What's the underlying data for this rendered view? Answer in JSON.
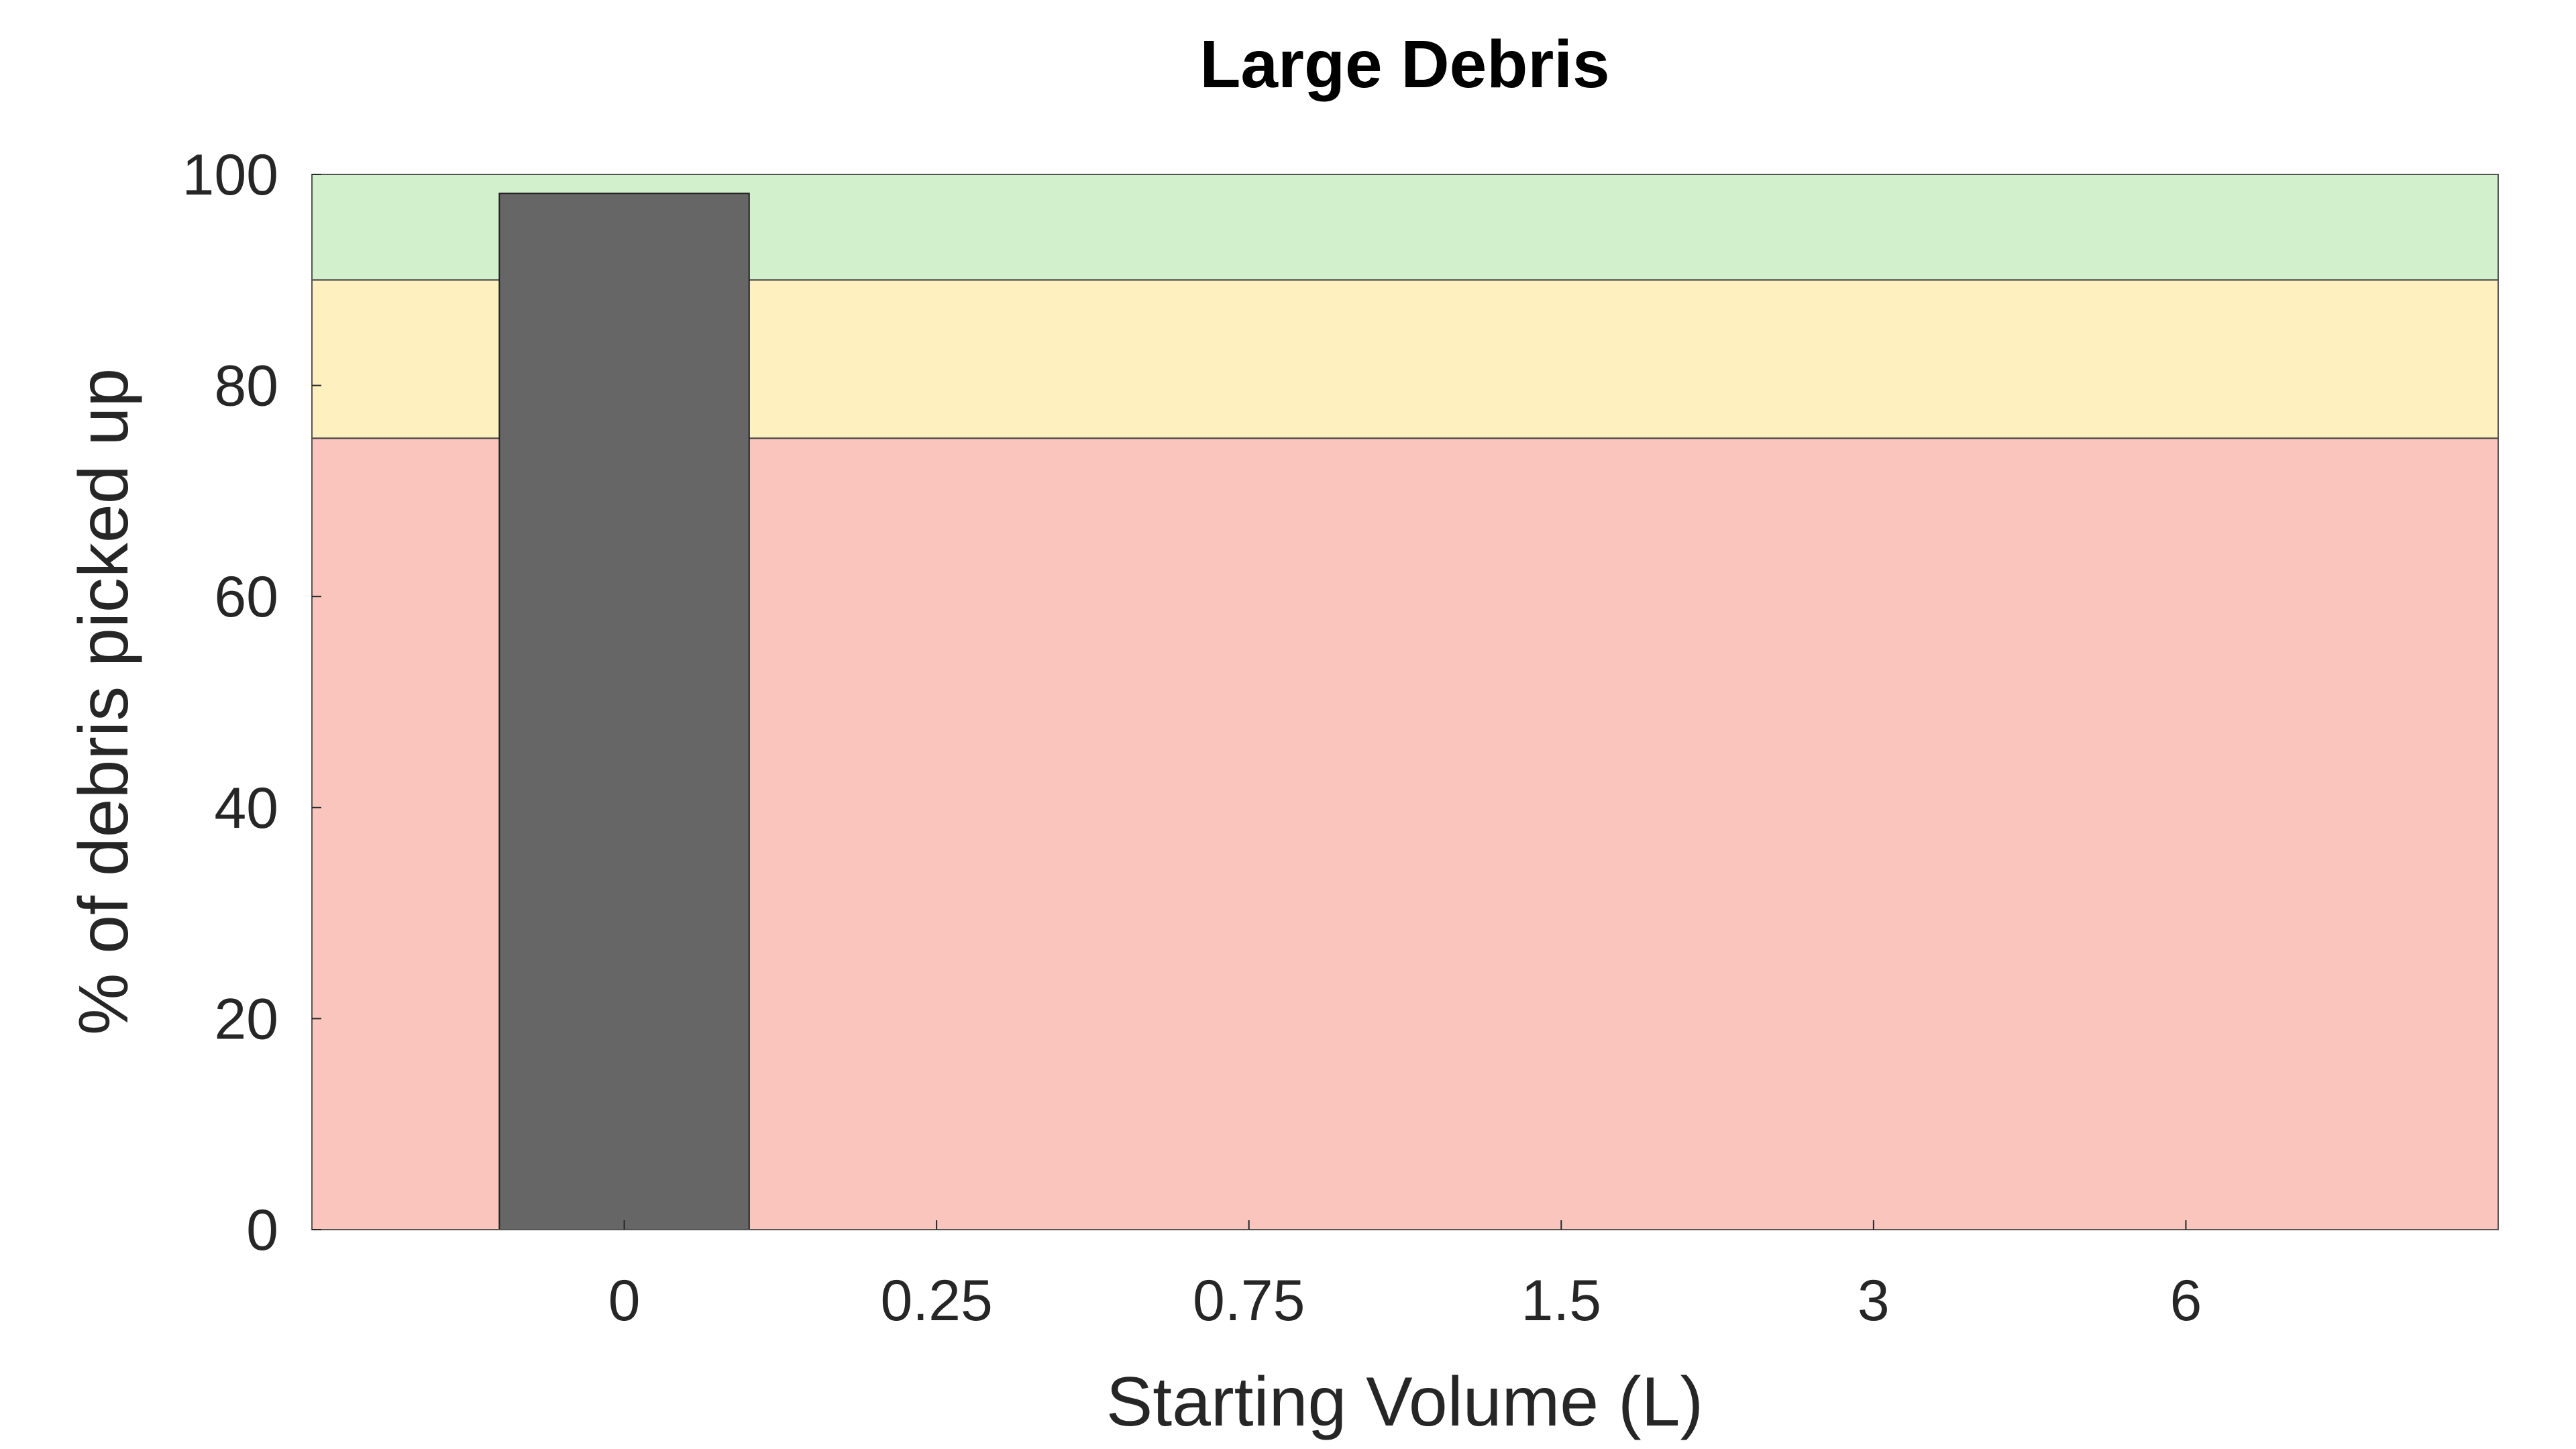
{
  "chart_data": {
    "type": "bar",
    "title": "Large Debris",
    "xlabel": "Starting Volume (L)",
    "ylabel": "% of debris picked up",
    "categories": [
      "0",
      "0.25",
      "0.75",
      "1.5",
      "3",
      "6"
    ],
    "values": [
      98.2,
      null,
      null,
      null,
      null,
      null
    ],
    "ylim": [
      0,
      100
    ],
    "yticks": [
      "0",
      "20",
      "40",
      "60",
      "80",
      "100"
    ],
    "grid": false,
    "bar_color": "#666666",
    "bands": [
      {
        "from": 0,
        "to": 75,
        "color": "#f9c5bd"
      },
      {
        "from": 75,
        "to": 90,
        "color": "#fff0c0"
      },
      {
        "from": 90,
        "to": 100,
        "color": "#d3f0cd"
      }
    ]
  }
}
